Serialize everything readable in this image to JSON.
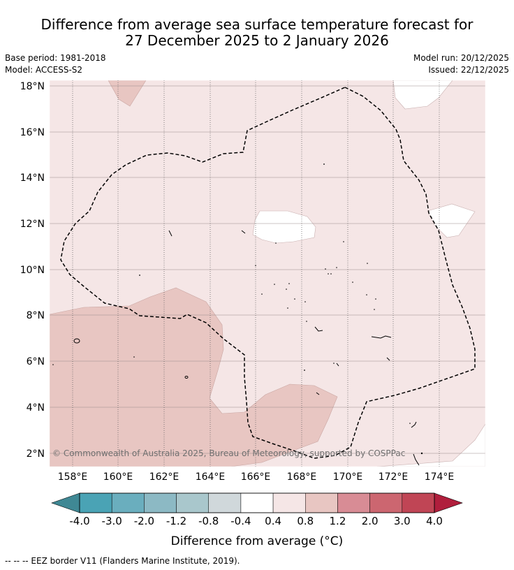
{
  "title": {
    "line1": "Difference from average sea surface temperature forecast for",
    "line2": "27 December 2025 to 2 January 2026"
  },
  "meta": {
    "base_period": "Base period: 1981-2018",
    "model": "Model: ACCESS-S2",
    "model_run": "Model run: 20/12/2025",
    "issued": "Issued: 22/12/2025"
  },
  "map": {
    "lon_labels": [
      "158°E",
      "160°E",
      "162°E",
      "164°E",
      "166°E",
      "168°E",
      "170°E",
      "172°E",
      "174°E"
    ],
    "lat_labels": [
      "18°N",
      "16°N",
      "14°N",
      "12°N",
      "10°N",
      "8°N",
      "6°N",
      "4°N",
      "2°N"
    ],
    "copyright": "© Commonwealth of Australia 2025, Bureau of Meteorology, supported by COSPPac"
  },
  "colorbar": {
    "ticks": [
      "-4.0",
      "-3.0",
      "-2.0",
      "-1.2",
      "-0.8",
      "-0.4",
      "0.4",
      "0.8",
      "1.2",
      "2.0",
      "3.0",
      "4.0"
    ],
    "colors": [
      "#4aa3b5",
      "#6aaebe",
      "#8cb9c4",
      "#a9c7cc",
      "#d0d8db",
      "#ffffff",
      "#f5e6e6",
      "#e8c6c2",
      "#d88c95",
      "#cc6670",
      "#c04555"
    ],
    "low_extend_color": "#3f8894",
    "high_extend_color": "#b01e3c",
    "label": "Difference from average (°C)"
  },
  "footer": "--  --  -- EEZ border V11 (Flanders Marine Institute, 2019)."
}
